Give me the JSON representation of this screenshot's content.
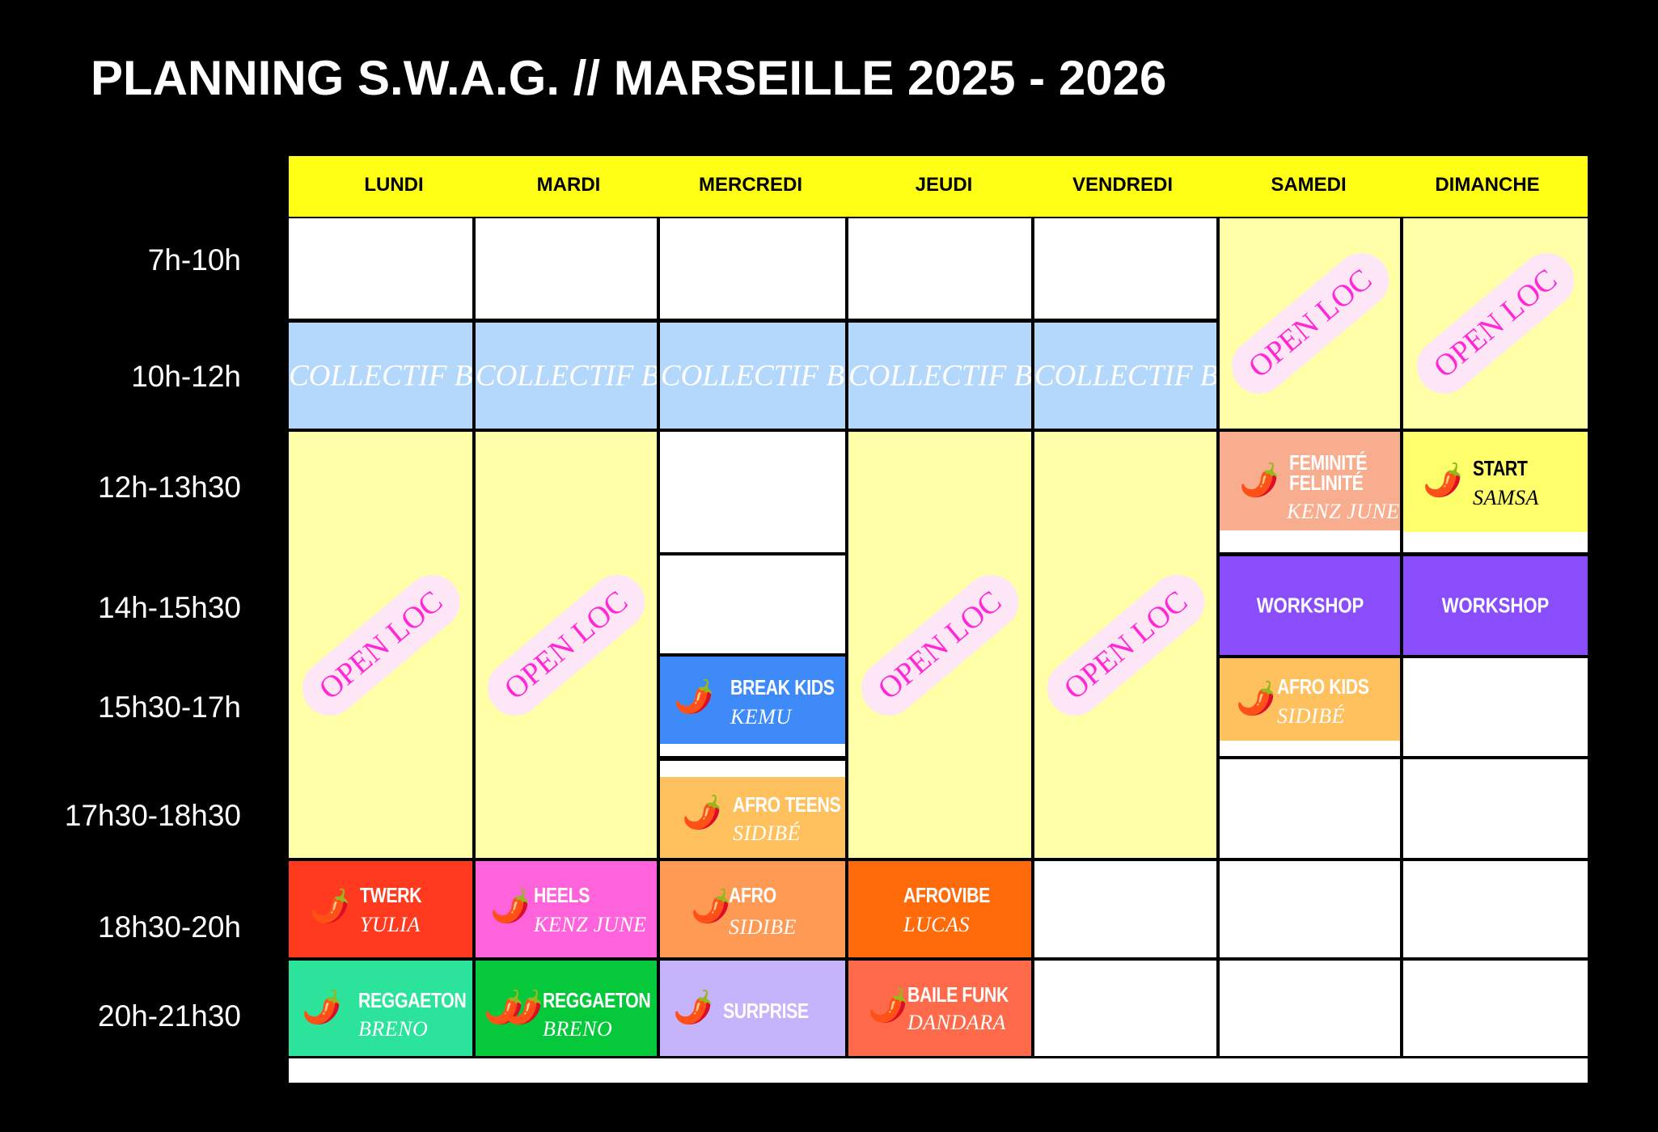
{
  "title": "PLANNING S.W.A.G. // MARSEILLE 2025 - 2026",
  "days": [
    "LUNDI",
    "MARDI",
    "MERCREDI",
    "JEUDI",
    "VENDREDI",
    "SAMEDI",
    "DIMANCHE"
  ],
  "times": [
    "7h-10h",
    "10h-12h",
    "12h-13h30",
    "14h-15h30",
    "15h30-17h",
    "17h30-18h30",
    "18h30-20h",
    "20h-21h30"
  ],
  "labels": {
    "collectif": "COLLECTIF B",
    "open_loc": "OPEN LOC",
    "pepper_icon": "hot-pepper-icon"
  },
  "colors": {
    "header": "#ffff16",
    "pale_yellow": "#ffffa8",
    "light_blue": "#b3d8fb",
    "open_loc_text": "#ff27d6",
    "twerk": "#ff3a1f",
    "heels": "#ff63dc",
    "afro_wed": "#ff9a55",
    "afrovibe": "#ff6b0a",
    "reggaeton_mon": "#2ce39b",
    "reggaeton_tue": "#05c83b",
    "surprise": "#c5b3fb",
    "baile_funk": "#ff6a4a",
    "break_kids": "#3d8af8",
    "afro_teens": "#ffc05e",
    "feminite": "#f8ad8f",
    "start": "#ffff6b",
    "workshop": "#8a4dfc",
    "afro_kids": "#ffc05e"
  },
  "classes": {
    "feminite": {
      "name_line1": "FEMINITÉ",
      "name_line2": "FELINITÉ",
      "teacher": "KENZ JUNE"
    },
    "start": {
      "name": "START",
      "teacher": "SAMSA"
    },
    "workshop_sat": {
      "name": "WORKSHOP"
    },
    "workshop_sun": {
      "name": "WORKSHOP"
    },
    "break_kids": {
      "name": "BREAK KIDS",
      "teacher": "KEMU"
    },
    "afro_kids": {
      "name": "AFRO KIDS",
      "teacher": "SIDIBÉ"
    },
    "afro_teens": {
      "name": "AFRO TEENS",
      "teacher": "SIDIBÉ"
    },
    "twerk": {
      "name": "TWERK",
      "teacher": "YULIA"
    },
    "heels": {
      "name": "HEELS",
      "teacher": "KENZ JUNE"
    },
    "afro": {
      "name": "AFRO",
      "teacher": "SIDIBE"
    },
    "afrovibe": {
      "name": "AFROVIBE",
      "teacher": "LUCAS"
    },
    "reggaeton_mon": {
      "name": "REGGAETON",
      "teacher": "BRENO"
    },
    "reggaeton_tue": {
      "name": "REGGAETON",
      "teacher": "BRENO"
    },
    "surprise": {
      "name": "SURPRISE"
    },
    "baile_funk": {
      "name": "BAILE FUNK",
      "teacher": "DANDARA"
    }
  }
}
